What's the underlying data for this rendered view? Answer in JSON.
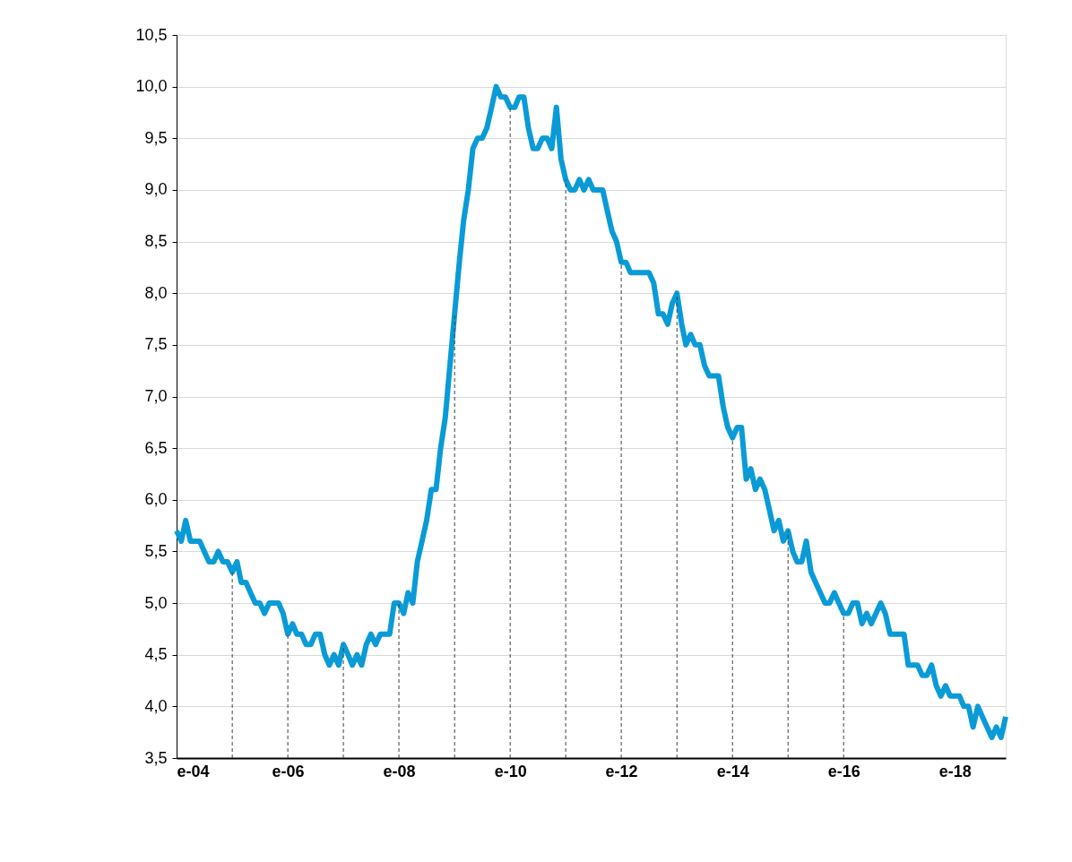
{
  "chart_data": {
    "type": "line",
    "x": [
      "2004-01",
      "2004-02",
      "2004-03",
      "2004-04",
      "2004-05",
      "2004-06",
      "2004-07",
      "2004-08",
      "2004-09",
      "2004-10",
      "2004-11",
      "2004-12",
      "2005-01",
      "2005-02",
      "2005-03",
      "2005-04",
      "2005-05",
      "2005-06",
      "2005-07",
      "2005-08",
      "2005-09",
      "2005-10",
      "2005-11",
      "2005-12",
      "2006-01",
      "2006-02",
      "2006-03",
      "2006-04",
      "2006-05",
      "2006-06",
      "2006-07",
      "2006-08",
      "2006-09",
      "2006-10",
      "2006-11",
      "2006-12",
      "2007-01",
      "2007-02",
      "2007-03",
      "2007-04",
      "2007-05",
      "2007-06",
      "2007-07",
      "2007-08",
      "2007-09",
      "2007-10",
      "2007-11",
      "2007-12",
      "2008-01",
      "2008-02",
      "2008-03",
      "2008-04",
      "2008-05",
      "2008-06",
      "2008-07",
      "2008-08",
      "2008-09",
      "2008-10",
      "2008-11",
      "2008-12",
      "2009-01",
      "2009-02",
      "2009-03",
      "2009-04",
      "2009-05",
      "2009-06",
      "2009-07",
      "2009-08",
      "2009-09",
      "2009-10",
      "2009-11",
      "2009-12",
      "2010-01",
      "2010-02",
      "2010-03",
      "2010-04",
      "2010-05",
      "2010-06",
      "2010-07",
      "2010-08",
      "2010-09",
      "2010-10",
      "2010-11",
      "2010-12",
      "2011-01",
      "2011-02",
      "2011-03",
      "2011-04",
      "2011-05",
      "2011-06",
      "2011-07",
      "2011-08",
      "2011-09",
      "2011-10",
      "2011-11",
      "2011-12",
      "2012-01",
      "2012-02",
      "2012-03",
      "2012-04",
      "2012-05",
      "2012-06",
      "2012-07",
      "2012-08",
      "2012-09",
      "2012-10",
      "2012-11",
      "2012-12",
      "2013-01",
      "2013-02",
      "2013-03",
      "2013-04",
      "2013-05",
      "2013-06",
      "2013-07",
      "2013-08",
      "2013-09",
      "2013-10",
      "2013-11",
      "2013-12",
      "2014-01",
      "2014-02",
      "2014-03",
      "2014-04",
      "2014-05",
      "2014-06",
      "2014-07",
      "2014-08",
      "2014-09",
      "2014-10",
      "2014-11",
      "2014-12",
      "2015-01",
      "2015-02",
      "2015-03",
      "2015-04",
      "2015-05",
      "2015-06",
      "2015-07",
      "2015-08",
      "2015-09",
      "2015-10",
      "2015-11",
      "2015-12",
      "2016-01",
      "2016-02",
      "2016-03",
      "2016-04",
      "2016-05",
      "2016-06",
      "2016-07",
      "2016-08",
      "2016-09",
      "2016-10",
      "2016-11",
      "2016-12",
      "2017-01",
      "2017-02",
      "2017-03",
      "2017-04",
      "2017-05",
      "2017-06",
      "2017-07",
      "2017-08",
      "2017-09",
      "2017-10",
      "2017-11",
      "2017-12",
      "2018-01",
      "2018-02",
      "2018-03",
      "2018-04",
      "2018-05",
      "2018-06",
      "2018-07",
      "2018-08",
      "2018-09",
      "2018-10",
      "2018-11",
      "2018-12"
    ],
    "series": [
      {
        "color": "#0a9bd7",
        "values": [
          5.7,
          5.6,
          5.8,
          5.6,
          5.6,
          5.6,
          5.5,
          5.4,
          5.4,
          5.5,
          5.4,
          5.4,
          5.3,
          5.4,
          5.2,
          5.2,
          5.1,
          5.0,
          5.0,
          4.9,
          5.0,
          5.0,
          5.0,
          4.9,
          4.7,
          4.8,
          4.7,
          4.7,
          4.6,
          4.6,
          4.7,
          4.7,
          4.5,
          4.4,
          4.5,
          4.4,
          4.6,
          4.5,
          4.4,
          4.5,
          4.4,
          4.6,
          4.7,
          4.6,
          4.7,
          4.7,
          4.7,
          5.0,
          5.0,
          4.9,
          5.1,
          5.0,
          5.4,
          5.6,
          5.8,
          6.1,
          6.1,
          6.5,
          6.8,
          7.3,
          7.8,
          8.3,
          8.7,
          9.0,
          9.4,
          9.5,
          9.5,
          9.6,
          9.8,
          10.0,
          9.9,
          9.9,
          9.8,
          9.8,
          9.9,
          9.9,
          9.6,
          9.4,
          9.4,
          9.5,
          9.5,
          9.4,
          9.8,
          9.3,
          9.1,
          9.0,
          9.0,
          9.1,
          9.0,
          9.1,
          9.0,
          9.0,
          9.0,
          8.8,
          8.6,
          8.5,
          8.3,
          8.3,
          8.2,
          8.2,
          8.2,
          8.2,
          8.2,
          8.1,
          7.8,
          7.8,
          7.7,
          7.9,
          8.0,
          7.7,
          7.5,
          7.6,
          7.5,
          7.5,
          7.3,
          7.2,
          7.2,
          7.2,
          6.9,
          6.7,
          6.6,
          6.7,
          6.7,
          6.2,
          6.3,
          6.1,
          6.2,
          6.1,
          5.9,
          5.7,
          5.8,
          5.6,
          5.7,
          5.5,
          5.4,
          5.4,
          5.6,
          5.3,
          5.2,
          5.1,
          5.0,
          5.0,
          5.1,
          5.0,
          4.9,
          4.9,
          5.0,
          5.0,
          4.8,
          4.9,
          4.8,
          4.9,
          5.0,
          4.9,
          4.7,
          4.7,
          4.7,
          4.7,
          4.4,
          4.4,
          4.4,
          4.3,
          4.3,
          4.4,
          4.2,
          4.1,
          4.2,
          4.1,
          4.1,
          4.1,
          4.0,
          4.0,
          3.8,
          4.0,
          3.9,
          3.8,
          3.7,
          3.8,
          3.7,
          3.9
        ]
      }
    ],
    "xlim": [
      "2004-01",
      "2018-12"
    ],
    "xticks": [
      {
        "value": "2004-01",
        "label": "e-04"
      },
      {
        "value": "2006-01",
        "label": "e-06"
      },
      {
        "value": "2008-01",
        "label": "e-08"
      },
      {
        "value": "2010-01",
        "label": "e-10"
      },
      {
        "value": "2012-01",
        "label": "e-12"
      },
      {
        "value": "2014-01",
        "label": "e-14"
      },
      {
        "value": "2016-01",
        "label": "e-16"
      },
      {
        "value": "2018-01",
        "label": "e-18"
      }
    ],
    "ylim": [
      3.5,
      10.5
    ],
    "yticks": [
      {
        "value": 3.5,
        "label": "3,5"
      },
      {
        "value": 4.0,
        "label": "4,0"
      },
      {
        "value": 4.5,
        "label": "4,5"
      },
      {
        "value": 5.0,
        "label": "5,0"
      },
      {
        "value": 5.5,
        "label": "5,5"
      },
      {
        "value": 6.0,
        "label": "6,0"
      },
      {
        "value": 6.5,
        "label": "6,5"
      },
      {
        "value": 7.0,
        "label": "7,0"
      },
      {
        "value": 7.5,
        "label": "7,5"
      },
      {
        "value": 8.0,
        "label": "8,0"
      },
      {
        "value": 8.5,
        "label": "8,5"
      },
      {
        "value": 9.0,
        "label": "9,0"
      },
      {
        "value": 9.5,
        "label": "9,5"
      },
      {
        "value": 10.0,
        "label": "10,0"
      },
      {
        "value": 10.5,
        "label": "10,5"
      }
    ],
    "ref_lines": [
      {
        "axis": "x",
        "value": "2005-01",
        "color": "#404040",
        "line_style": "dashed"
      },
      {
        "axis": "x",
        "value": "2006-01",
        "color": "#404040",
        "line_style": "dashed"
      },
      {
        "axis": "x",
        "value": "2007-01",
        "color": "#404040",
        "line_style": "dashed"
      },
      {
        "axis": "x",
        "value": "2008-01",
        "color": "#404040",
        "line_style": "dashed"
      },
      {
        "axis": "x",
        "value": "2009-01",
        "color": "#404040",
        "line_style": "dashed"
      },
      {
        "axis": "x",
        "value": "2010-01",
        "color": "#404040",
        "line_style": "dashed"
      },
      {
        "axis": "x",
        "value": "2011-01",
        "color": "#404040",
        "line_style": "dashed"
      },
      {
        "axis": "x",
        "value": "2012-01",
        "color": "#404040",
        "line_style": "dashed"
      },
      {
        "axis": "x",
        "value": "2013-01",
        "color": "#404040",
        "line_style": "dashed"
      },
      {
        "axis": "x",
        "value": "2014-01",
        "color": "#404040",
        "line_style": "dashed"
      },
      {
        "axis": "x",
        "value": "2015-01",
        "color": "#404040",
        "line_style": "dashed"
      },
      {
        "axis": "x",
        "value": "2016-01",
        "color": "#404040",
        "line_style": "dashed"
      }
    ],
    "grid": "y",
    "line_style": "solid",
    "marker": "none"
  }
}
